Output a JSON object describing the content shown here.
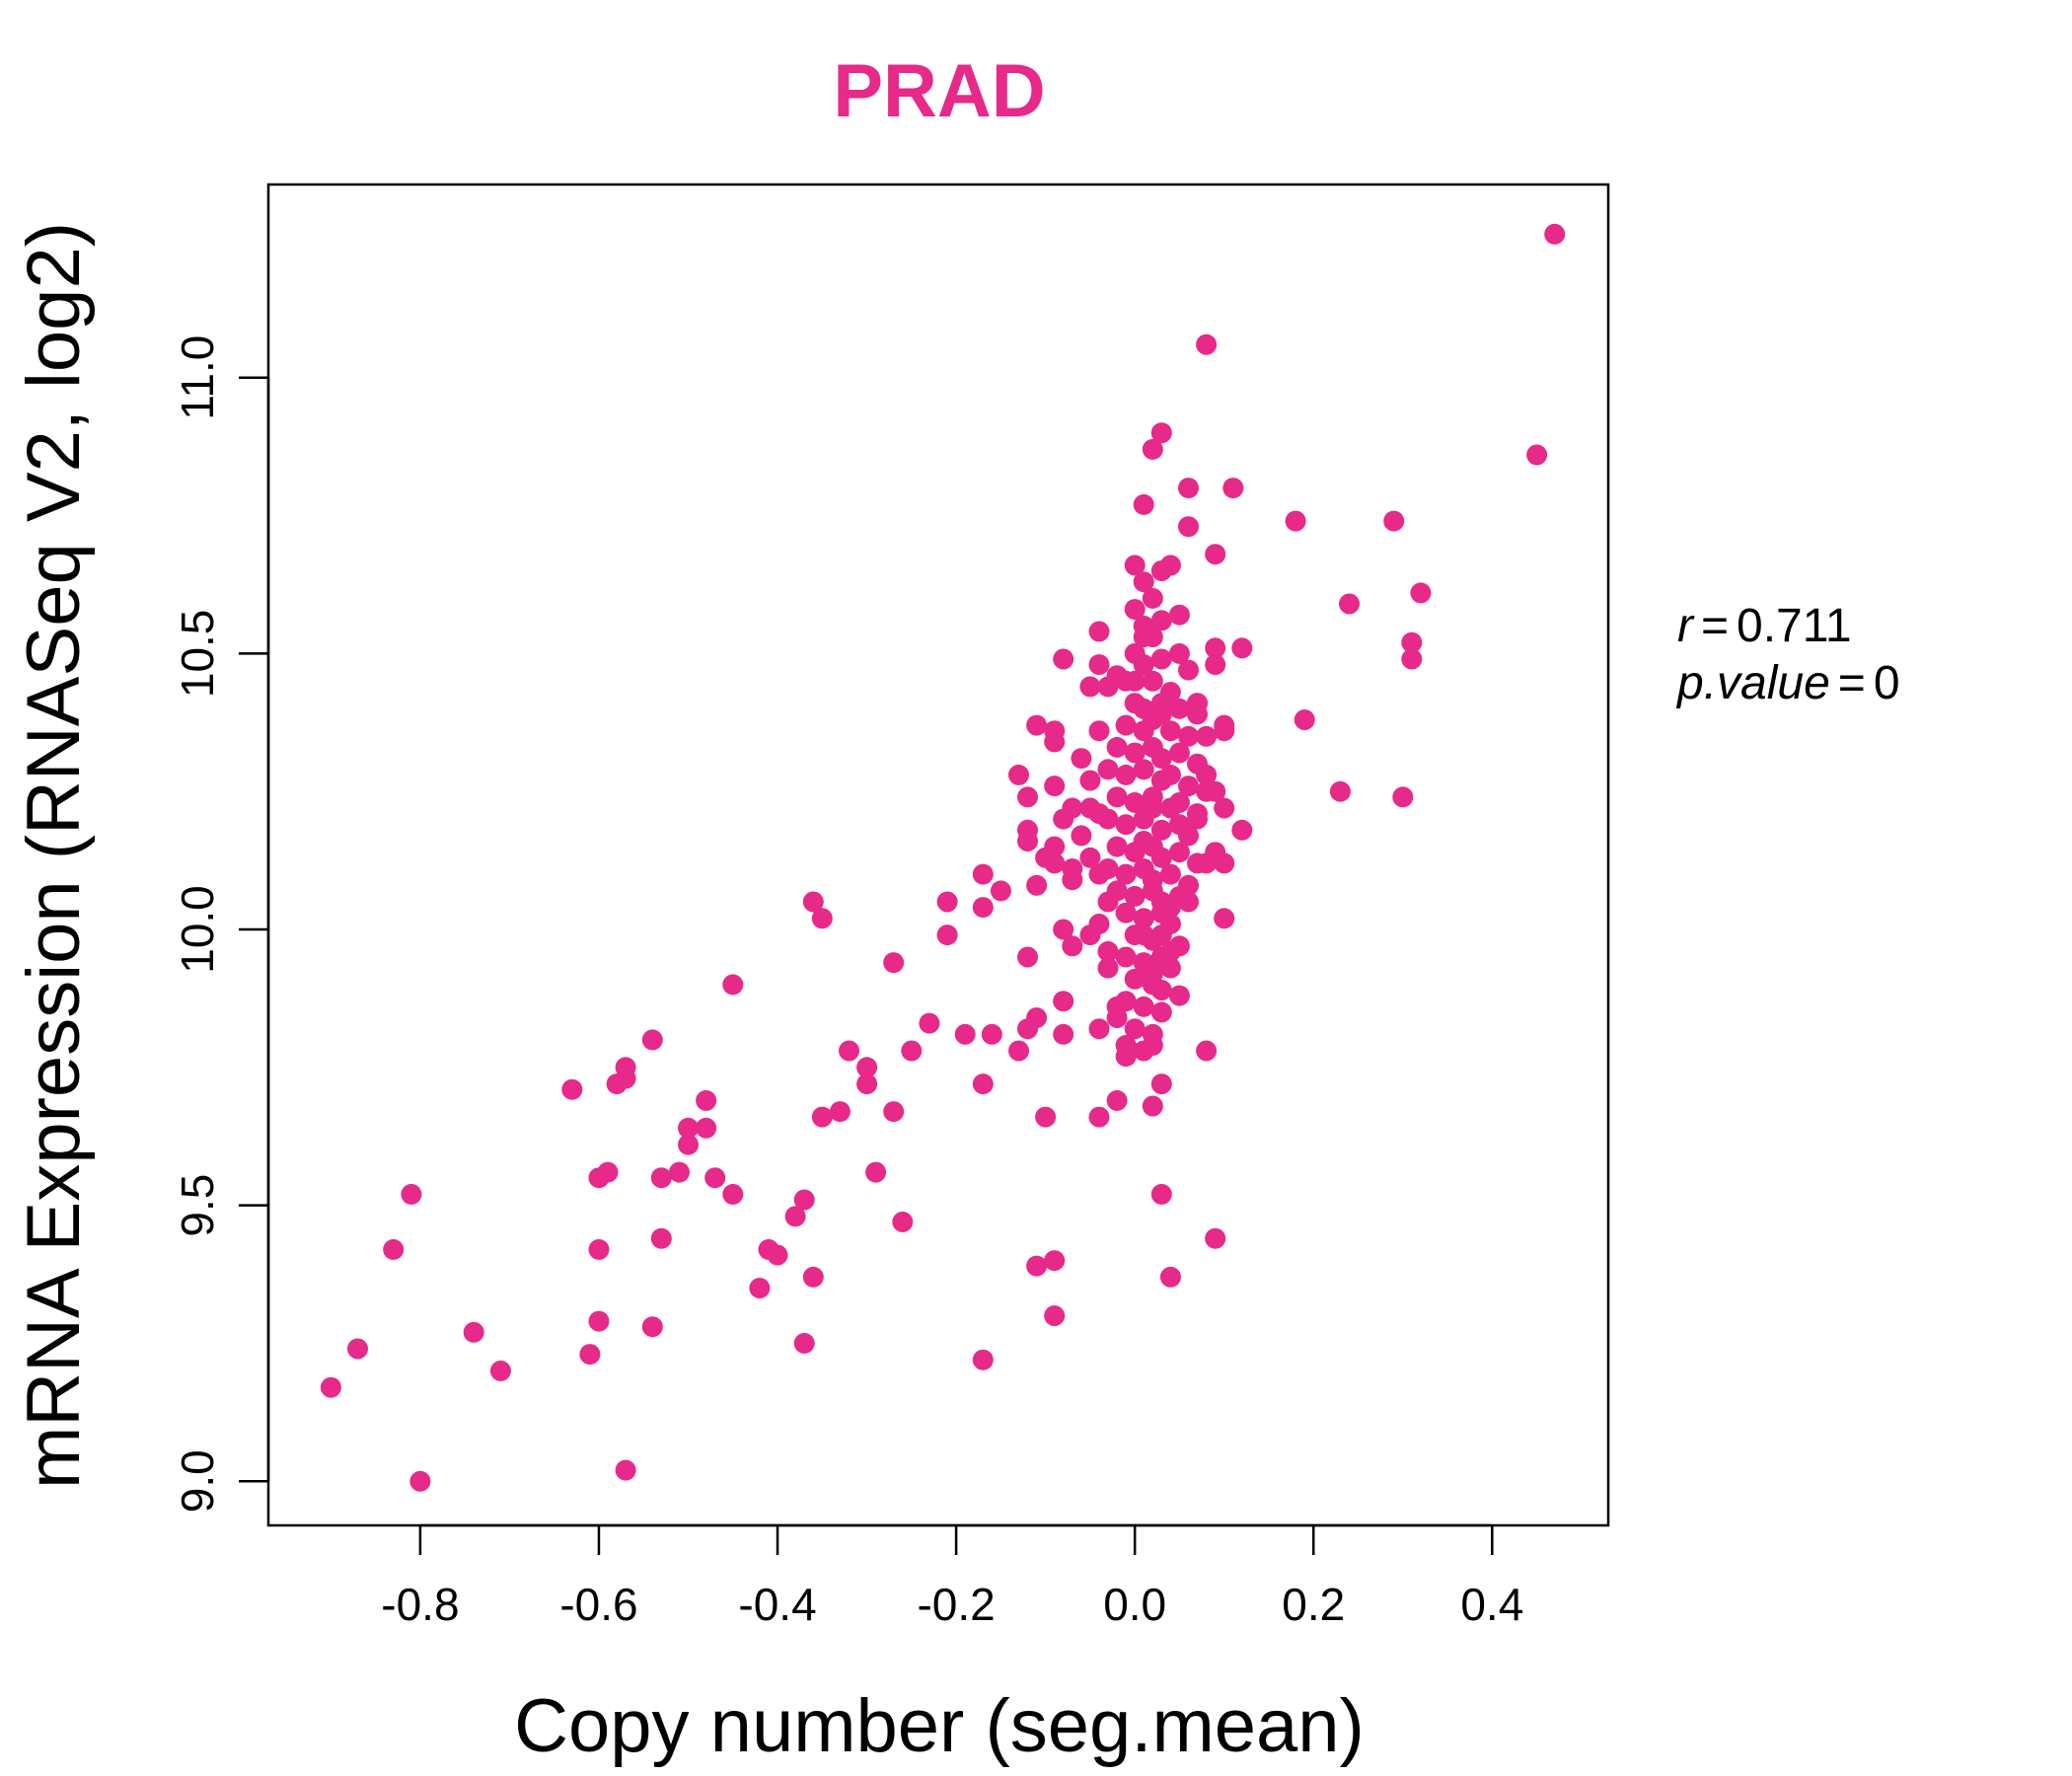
{
  "chart_data": {
    "type": "scatter",
    "title": "PRAD",
    "xlabel": "Copy number (seg.mean)",
    "ylabel": "mRNA Expression (RNASeq V2, log2)",
    "xlim": [
      -0.97,
      0.53
    ],
    "ylim": [
      8.92,
      11.35
    ],
    "xticks": [
      -0.8,
      -0.6,
      -0.4,
      -0.2,
      0.0,
      0.2,
      0.4
    ],
    "xtick_labels": [
      "-0.8",
      "-0.6",
      "-0.4",
      "-0.2",
      "0.0",
      "0.2",
      "0.4"
    ],
    "yticks": [
      9.0,
      9.5,
      10.0,
      10.5,
      11.0
    ],
    "ytick_labels": [
      "9.0",
      "9.5",
      "10.0",
      "10.5",
      "11.0"
    ],
    "grid": false,
    "color": "#e7298a",
    "annotation": {
      "r_label": "r",
      "r_value": "0.711",
      "p_label": "p.value",
      "p_value": "0"
    },
    "points": [
      [
        0.47,
        11.26
      ],
      [
        0.08,
        11.06
      ],
      [
        0.45,
        10.86
      ],
      [
        0.03,
        10.9
      ],
      [
        0.02,
        10.87
      ],
      [
        0.06,
        10.8
      ],
      [
        0.11,
        10.8
      ],
      [
        0.01,
        10.77
      ],
      [
        0.18,
        10.74
      ],
      [
        0.29,
        10.74
      ],
      [
        0.06,
        10.73
      ],
      [
        0.09,
        10.68
      ],
      [
        0.32,
        10.61
      ],
      [
        0.24,
        10.59
      ],
      [
        0.31,
        10.52
      ],
      [
        0.31,
        10.49
      ],
      [
        0.12,
        10.51
      ],
      [
        0.09,
        10.48
      ],
      [
        0.09,
        10.51
      ],
      [
        0.19,
        10.38
      ],
      [
        0.23,
        10.25
      ],
      [
        0.3,
        10.24
      ],
      [
        0.12,
        10.18
      ],
      [
        0.1,
        10.36
      ],
      [
        0.1,
        10.37
      ],
      [
        0.07,
        10.41
      ],
      [
        0.09,
        10.25
      ],
      [
        0.1,
        10.22
      ],
      [
        0.09,
        10.14
      ],
      [
        0.1,
        10.12
      ],
      [
        0.1,
        10.02
      ],
      [
        0.08,
        9.78
      ],
      [
        0.09,
        9.44
      ],
      [
        0.03,
        9.52
      ],
      [
        0.04,
        9.37
      ],
      [
        0.03,
        9.72
      ],
      [
        0.02,
        9.68
      ],
      [
        -0.02,
        9.69
      ],
      [
        -0.04,
        9.66
      ],
      [
        -0.1,
        9.66
      ],
      [
        -0.11,
        9.39
      ],
      [
        -0.09,
        9.4
      ],
      [
        -0.09,
        9.3
      ],
      [
        -0.17,
        9.22
      ],
      [
        -0.08,
        10.49
      ],
      [
        -0.04,
        10.48
      ],
      [
        -0.04,
        10.54
      ],
      [
        -0.03,
        10.44
      ],
      [
        -0.02,
        10.46
      ],
      [
        -0.11,
        10.37
      ],
      [
        -0.09,
        10.34
      ],
      [
        -0.09,
        10.36
      ],
      [
        -0.13,
        10.28
      ],
      [
        -0.12,
        10.24
      ],
      [
        -0.09,
        10.26
      ],
      [
        -0.12,
        10.18
      ],
      [
        -0.08,
        10.2
      ],
      [
        -0.07,
        10.22
      ],
      [
        -0.05,
        10.22
      ],
      [
        -0.09,
        10.15
      ],
      [
        -0.1,
        10.13
      ],
      [
        -0.07,
        10.11
      ],
      [
        -0.07,
        10.09
      ],
      [
        -0.09,
        10.12
      ],
      [
        -0.12,
        10.16
      ],
      [
        -0.15,
        10.07
      ],
      [
        -0.11,
        10.08
      ],
      [
        -0.17,
        10.1
      ],
      [
        -0.17,
        10.04
      ],
      [
        -0.21,
        10.05
      ],
      [
        -0.08,
        10.0
      ],
      [
        -0.04,
        10.01
      ],
      [
        -0.07,
        9.97
      ],
      [
        -0.12,
        9.95
      ],
      [
        -0.21,
        9.99
      ],
      [
        -0.03,
        9.96
      ],
      [
        -0.08,
        9.87
      ],
      [
        -0.11,
        9.84
      ],
      [
        -0.12,
        9.82
      ],
      [
        -0.08,
        9.81
      ],
      [
        -0.16,
        9.81
      ],
      [
        -0.19,
        9.81
      ],
      [
        -0.13,
        9.78
      ],
      [
        -0.17,
        9.72
      ],
      [
        -0.23,
        9.83
      ],
      [
        -0.25,
        9.78
      ],
      [
        -0.27,
        9.94
      ],
      [
        -0.27,
        9.67
      ],
      [
        -0.29,
        9.56
      ],
      [
        -0.26,
        9.47
      ],
      [
        -0.3,
        9.72
      ],
      [
        -0.3,
        9.75
      ],
      [
        -0.32,
        9.78
      ],
      [
        -0.33,
        9.67
      ],
      [
        -0.35,
        9.66
      ],
      [
        -0.35,
        10.02
      ],
      [
        -0.36,
        10.05
      ],
      [
        -0.36,
        9.37
      ],
      [
        -0.37,
        9.51
      ],
      [
        -0.38,
        9.48
      ],
      [
        -0.37,
        9.25
      ],
      [
        -0.4,
        9.41
      ],
      [
        -0.41,
        9.42
      ],
      [
        -0.42,
        9.35
      ],
      [
        -0.45,
        9.52
      ],
      [
        -0.45,
        9.9
      ],
      [
        -0.47,
        9.55
      ],
      [
        -0.48,
        9.64
      ],
      [
        -0.48,
        9.69
      ],
      [
        -0.5,
        9.64
      ],
      [
        -0.5,
        9.61
      ],
      [
        -0.51,
        9.56
      ],
      [
        -0.53,
        9.55
      ],
      [
        -0.53,
        9.44
      ],
      [
        -0.54,
        9.8
      ],
      [
        -0.54,
        9.28
      ],
      [
        -0.57,
        9.75
      ],
      [
        -0.57,
        9.73
      ],
      [
        -0.58,
        9.72
      ],
      [
        -0.59,
        9.56
      ],
      [
        -0.6,
        9.55
      ],
      [
        -0.6,
        9.42
      ],
      [
        -0.6,
        9.29
      ],
      [
        -0.61,
        9.23
      ],
      [
        -0.63,
        9.71
      ],
      [
        -0.57,
        9.02
      ],
      [
        -0.71,
        9.2
      ],
      [
        -0.74,
        9.27
      ],
      [
        -0.8,
        9.0
      ],
      [
        -0.81,
        9.52
      ],
      [
        -0.83,
        9.42
      ],
      [
        -0.87,
        9.24
      ],
      [
        -0.9,
        9.17
      ],
      [
        0.0,
        10.66
      ],
      [
        0.01,
        10.63
      ],
      [
        0.02,
        10.6
      ],
      [
        0.03,
        10.65
      ],
      [
        0.04,
        10.66
      ],
      [
        0.0,
        10.58
      ],
      [
        0.01,
        10.55
      ],
      [
        0.03,
        10.56
      ],
      [
        0.05,
        10.57
      ],
      [
        0.02,
        10.53
      ],
      [
        0.0,
        10.5
      ],
      [
        0.01,
        10.48
      ],
      [
        0.03,
        10.49
      ],
      [
        0.05,
        10.5
      ],
      [
        -0.01,
        10.45
      ],
      [
        0.02,
        10.45
      ],
      [
        0.04,
        10.43
      ],
      [
        0.0,
        10.41
      ],
      [
        0.01,
        10.4
      ],
      [
        0.03,
        10.41
      ],
      [
        0.05,
        10.4
      ],
      [
        0.07,
        10.39
      ],
      [
        -0.01,
        10.37
      ],
      [
        0.01,
        10.36
      ],
      [
        0.02,
        10.38
      ],
      [
        0.04,
        10.36
      ],
      [
        0.06,
        10.35
      ],
      [
        -0.02,
        10.33
      ],
      [
        0.0,
        10.32
      ],
      [
        0.02,
        10.33
      ],
      [
        0.03,
        10.31
      ],
      [
        0.05,
        10.32
      ],
      [
        0.07,
        10.3
      ],
      [
        -0.03,
        10.29
      ],
      [
        -0.01,
        10.28
      ],
      [
        0.01,
        10.29
      ],
      [
        0.03,
        10.27
      ],
      [
        0.04,
        10.28
      ],
      [
        0.06,
        10.26
      ],
      [
        0.08,
        10.25
      ],
      [
        -0.02,
        10.24
      ],
      [
        0.0,
        10.23
      ],
      [
        0.02,
        10.24
      ],
      [
        0.04,
        10.22
      ],
      [
        0.05,
        10.23
      ],
      [
        0.07,
        10.21
      ],
      [
        -0.03,
        10.2
      ],
      [
        -0.01,
        10.19
      ],
      [
        0.01,
        10.2
      ],
      [
        0.03,
        10.18
      ],
      [
        0.05,
        10.19
      ],
      [
        0.06,
        10.17
      ],
      [
        -0.02,
        10.15
      ],
      [
        0.0,
        10.14
      ],
      [
        0.02,
        10.15
      ],
      [
        0.03,
        10.13
      ],
      [
        0.05,
        10.14
      ],
      [
        0.07,
        10.12
      ],
      [
        -0.03,
        10.11
      ],
      [
        -0.01,
        10.1
      ],
      [
        0.01,
        10.11
      ],
      [
        0.02,
        10.09
      ],
      [
        0.04,
        10.1
      ],
      [
        0.06,
        10.08
      ],
      [
        -0.02,
        10.07
      ],
      [
        0.0,
        10.06
      ],
      [
        0.02,
        10.07
      ],
      [
        0.03,
        10.05
      ],
      [
        0.05,
        10.06
      ],
      [
        -0.01,
        10.03
      ],
      [
        0.01,
        10.02
      ],
      [
        0.03,
        10.03
      ],
      [
        0.04,
        10.01
      ],
      [
        0.0,
        9.99
      ],
      [
        0.02,
        9.98
      ],
      [
        0.03,
        9.99
      ],
      [
        0.05,
        9.97
      ],
      [
        -0.01,
        9.95
      ],
      [
        0.01,
        9.94
      ],
      [
        0.03,
        9.95
      ],
      [
        0.04,
        9.93
      ],
      [
        0.0,
        9.91
      ],
      [
        0.02,
        9.9
      ],
      [
        0.03,
        9.89
      ],
      [
        0.05,
        9.88
      ],
      [
        -0.01,
        9.87
      ],
      [
        0.01,
        9.86
      ],
      [
        0.03,
        9.85
      ],
      [
        -0.02,
        9.84
      ],
      [
        0.0,
        9.82
      ],
      [
        0.02,
        9.81
      ],
      [
        -0.01,
        9.79
      ],
      [
        0.01,
        9.78
      ],
      [
        -0.05,
        10.44
      ],
      [
        -0.04,
        10.36
      ],
      [
        -0.06,
        10.31
      ],
      [
        -0.05,
        10.27
      ],
      [
        -0.04,
        10.21
      ],
      [
        -0.06,
        10.17
      ],
      [
        -0.05,
        10.13
      ],
      [
        -0.04,
        10.1
      ],
      [
        -0.03,
        10.05
      ],
      [
        -0.05,
        9.99
      ],
      [
        -0.03,
        9.93
      ],
      [
        -0.02,
        9.86
      ],
      [
        -0.04,
        9.82
      ],
      [
        0.02,
        9.79
      ],
      [
        -0.01,
        9.77
      ],
      [
        0.08,
        10.35
      ],
      [
        0.08,
        10.28
      ],
      [
        0.07,
        10.2
      ],
      [
        0.08,
        10.12
      ],
      [
        0.06,
        10.05
      ],
      [
        0.07,
        10.41
      ],
      [
        0.06,
        10.47
      ],
      [
        0.01,
        10.53
      ],
      [
        0.0,
        10.45
      ],
      [
        0.03,
        10.39
      ],
      [
        0.02,
        10.22
      ],
      [
        0.01,
        10.16
      ],
      [
        0.04,
        10.04
      ],
      [
        0.02,
        9.92
      ],
      [
        0.04,
        9.96
      ],
      [
        0.01,
        9.99
      ]
    ]
  }
}
